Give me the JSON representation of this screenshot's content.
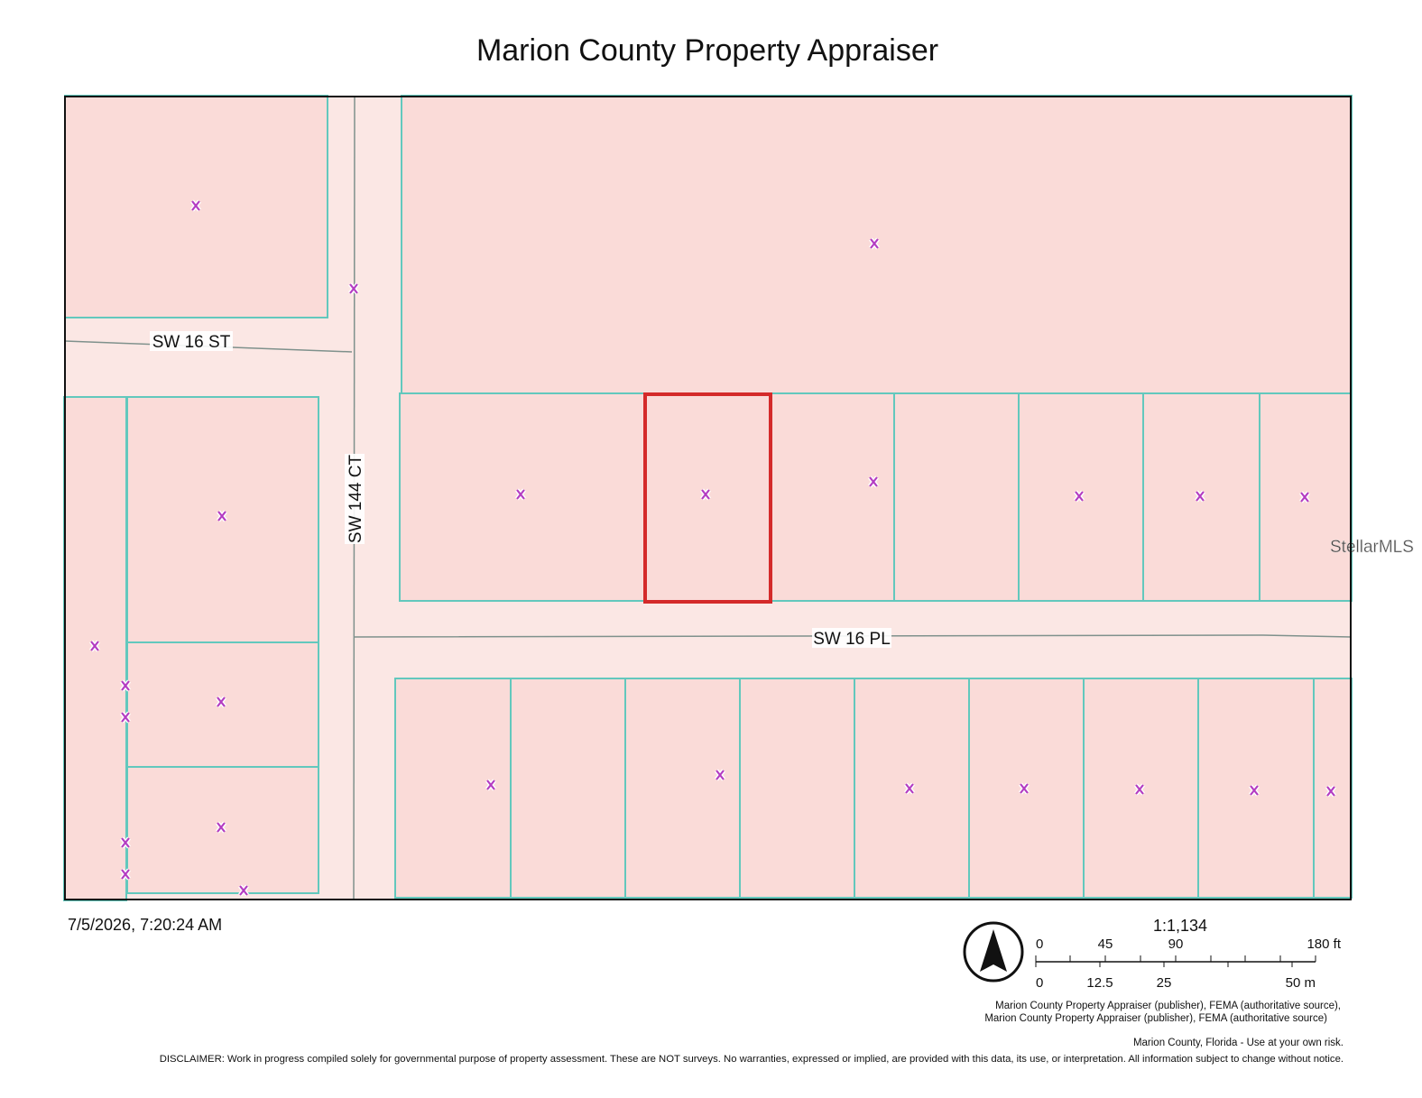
{
  "header": {
    "title": "Marion County Property Appraiser"
  },
  "map": {
    "streets": [
      "SW 16 ST",
      "SW 144 CT",
      "SW 16 PL"
    ],
    "watermark": "StellarMLS"
  },
  "footer": {
    "timestamp": "7/5/2026, 7:20:24 AM",
    "scale": {
      "ratio": "1:1,134",
      "feet": [
        "0",
        "45",
        "90",
        "180 ft"
      ],
      "meters": [
        "0",
        "12.5",
        "25",
        "50 m"
      ]
    },
    "attribution": [
      "Marion County Property Appraiser (publisher), FEMA (authoritative source),",
      "Marion County Property Appraiser (publisher), FEMA (authoritative source)"
    ],
    "notice": "Marion County, Florida - Use at your own risk.",
    "disclaimer": "DISCLAIMER: Work in progress compiled solely for governmental purpose of property assessment. These are NOT surveys. No warranties, expressed or implied, are provided with this data, its use, or interpretation. All information subject to change without notice."
  }
}
